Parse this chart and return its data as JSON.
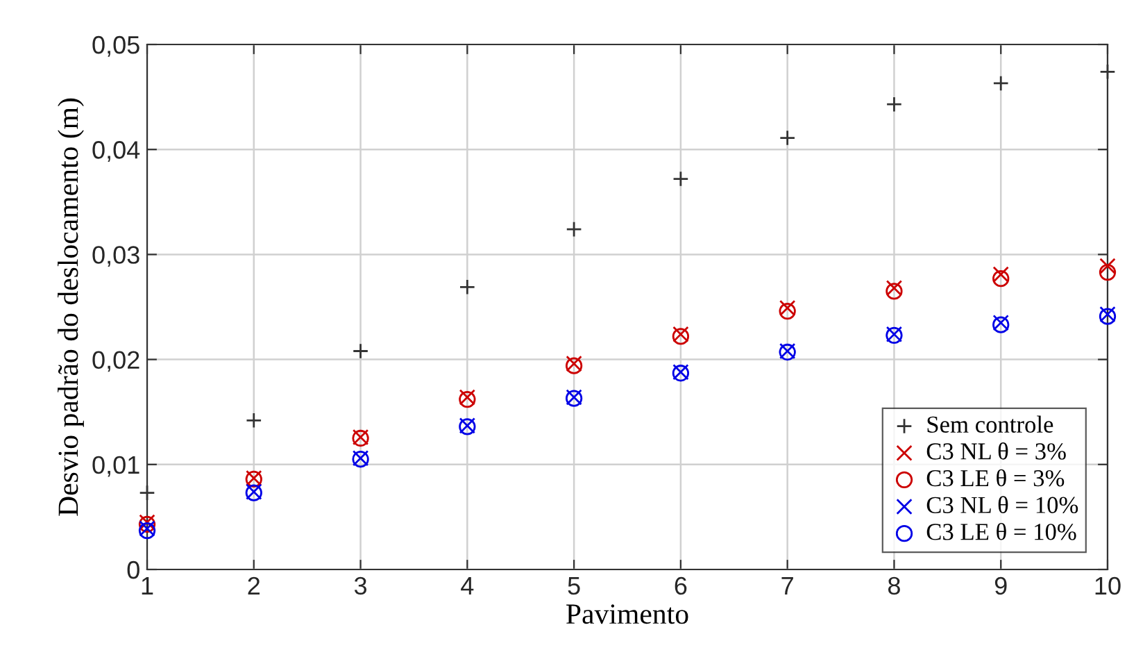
{
  "chart_data": {
    "type": "scatter",
    "xlabel": "Pavimento",
    "ylabel": "Desvio padrão do deslocamento (m)",
    "x": [
      1,
      2,
      3,
      4,
      5,
      6,
      7,
      8,
      9,
      10
    ],
    "series": [
      {
        "name": "Sem controle",
        "color": "#333333",
        "marker": "plus",
        "values": [
          0.0073,
          0.0142,
          0.0208,
          0.0269,
          0.0324,
          0.0372,
          0.0411,
          0.0443,
          0.0463,
          0.0474
        ]
      },
      {
        "name": "C3 NL θ = 3%",
        "color": "#cc0000",
        "marker": "cross",
        "values": [
          0.0045,
          0.0087,
          0.0126,
          0.0164,
          0.0196,
          0.0224,
          0.0249,
          0.0268,
          0.0281,
          0.0289
        ]
      },
      {
        "name": "C3 LE θ = 3%",
        "color": "#cc0000",
        "marker": "circle",
        "values": [
          0.0043,
          0.0086,
          0.0125,
          0.0162,
          0.0194,
          0.0222,
          0.0246,
          0.0265,
          0.0277,
          0.0283
        ]
      },
      {
        "name": "C3 NL θ = 10%",
        "color": "#0000e6",
        "marker": "cross",
        "values": [
          0.0039,
          0.0074,
          0.0106,
          0.0137,
          0.0164,
          0.0188,
          0.0208,
          0.0224,
          0.0235,
          0.0243
        ]
      },
      {
        "name": "C3 LE θ = 10%",
        "color": "#0000e6",
        "marker": "circle",
        "values": [
          0.0037,
          0.0073,
          0.0105,
          0.0136,
          0.0163,
          0.0187,
          0.0207,
          0.0223,
          0.0233,
          0.0241
        ]
      }
    ],
    "xlim": [
      1,
      10
    ],
    "xticks": [
      1,
      2,
      3,
      4,
      5,
      6,
      7,
      8,
      9,
      10
    ],
    "ylim": [
      0,
      0.05
    ],
    "yticks": [
      0,
      {
        "value": 0.01,
        "label": "0,01"
      },
      {
        "value": 0.02,
        "label": "0,02"
      },
      {
        "value": 0.03,
        "label": "0,03"
      },
      {
        "value": 0.04,
        "label": "0,04"
      },
      {
        "value": 0.05,
        "label": "0,05"
      }
    ],
    "grid": true,
    "legend": "bottom right"
  }
}
